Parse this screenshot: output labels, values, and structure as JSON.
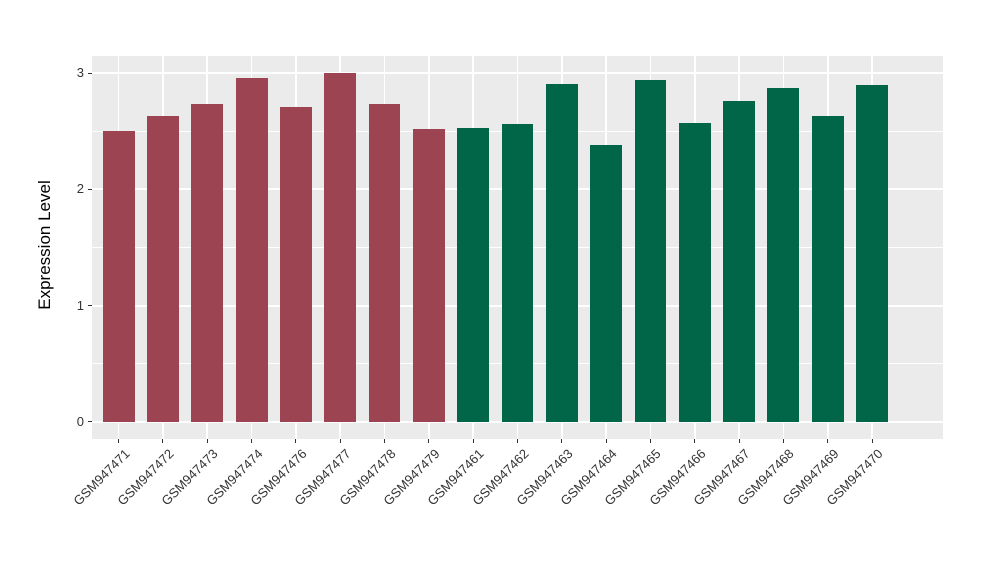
{
  "figure": {
    "background": "#FFFFFF",
    "panel_background": "#EBEBEB",
    "grid_color": "#FFFFFF",
    "axis_text_color": "#333333",
    "axis_title_color": "#000000",
    "group_red_color": "#9C4452",
    "group_green_color": "#006647"
  },
  "chart_data": {
    "type": "bar",
    "title": "",
    "xlabel": "",
    "ylabel": "Expression Level",
    "ylim": [
      0,
      3
    ],
    "yticks": [
      0,
      1,
      2,
      3
    ],
    "ytick_labels": [
      "0",
      "1",
      "2",
      "3"
    ],
    "grid": "white horizontal major+minor and vertical major gridlines on gray panel",
    "legend_position": "none",
    "categories": [
      "GSM947471",
      "GSM947472",
      "GSM947473",
      "GSM947474",
      "GSM947476",
      "GSM947477",
      "GSM947478",
      "GSM947479",
      "GSM947461",
      "GSM947462",
      "GSM947463",
      "GSM947464",
      "GSM947465",
      "GSM947466",
      "GSM947467",
      "GSM947468",
      "GSM947469",
      "GSM947470"
    ],
    "values": [
      2.5,
      2.63,
      2.74,
      2.96,
      2.71,
      3.0,
      2.74,
      2.52,
      2.53,
      2.56,
      2.91,
      2.38,
      2.94,
      2.57,
      2.76,
      2.87,
      2.63,
      2.9
    ],
    "colors": [
      "#9C4452",
      "#9C4452",
      "#9C4452",
      "#9C4452",
      "#9C4452",
      "#9C4452",
      "#9C4452",
      "#9C4452",
      "#006647",
      "#006647",
      "#006647",
      "#006647",
      "#006647",
      "#006647",
      "#006647",
      "#006647",
      "#006647",
      "#006647"
    ]
  }
}
